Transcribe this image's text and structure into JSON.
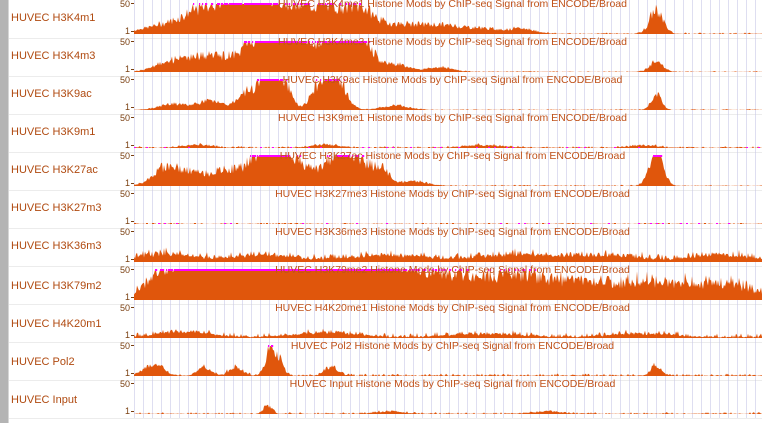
{
  "browser": {
    "left_bar": "track controls"
  },
  "colors": {
    "signal": "#e0560c",
    "clip": "#ff00ff",
    "label": "#b04a10",
    "grid": "#c8c8e8"
  },
  "tracks": [
    {
      "label": "HUVEC H3K4m1",
      "title": "HUVEC H3K4me1 Histone Mods by ChIP-seq Signal from ENCODE/Broad",
      "max": "50",
      "min": "1",
      "peaks": [
        [
          0.05,
          0.04,
          0.25
        ],
        [
          0.1,
          0.03,
          0.3
        ],
        [
          0.15,
          0.04,
          0.9
        ],
        [
          0.19,
          0.03,
          0.6
        ],
        [
          0.22,
          0.03,
          0.4
        ],
        [
          0.26,
          0.03,
          0.7
        ],
        [
          0.3,
          0.02,
          0.5
        ],
        [
          0.33,
          0.02,
          0.5
        ],
        [
          0.36,
          0.02,
          0.6
        ],
        [
          0.42,
          0.04,
          0.3
        ],
        [
          0.49,
          0.03,
          0.2
        ],
        [
          0.55,
          0.03,
          0.15
        ],
        [
          0.61,
          0.02,
          0.15
        ],
        [
          0.82,
          0.01,
          0.8
        ]
      ],
      "noise": 0.05
    },
    {
      "label": "HUVEC H3K4m3",
      "title": "HUVEC H3K4me3 Histone Mods by ChIP-seq Signal from ENCODE/Broad",
      "max": "50",
      "min": "1",
      "peaks": [
        [
          0.05,
          0.02,
          0.3
        ],
        [
          0.09,
          0.02,
          0.4
        ],
        [
          0.13,
          0.02,
          0.45
        ],
        [
          0.17,
          0.02,
          0.3
        ],
        [
          0.21,
          0.025,
          1.3
        ],
        [
          0.24,
          0.02,
          1.1
        ],
        [
          0.31,
          0.03,
          1.3
        ],
        [
          0.35,
          0.02,
          1.2
        ],
        [
          0.41,
          0.02,
          0.25
        ],
        [
          0.48,
          0.02,
          0.15
        ],
        [
          0.82,
          0.01,
          0.35
        ]
      ],
      "noise": 0.03
    },
    {
      "label": "HUVEC H3K9ac",
      "title": "HUVEC H3K9ac Histone Mods by ChIP-seq Signal from ENCODE/Broad",
      "max": "50",
      "min": "1",
      "peaks": [
        [
          0.06,
          0.02,
          0.2
        ],
        [
          0.12,
          0.02,
          0.3
        ],
        [
          0.18,
          0.015,
          0.6
        ],
        [
          0.21,
          0.012,
          1.4
        ],
        [
          0.235,
          0.012,
          0.9
        ],
        [
          0.285,
          0.01,
          0.6
        ],
        [
          0.315,
          0.015,
          1.3
        ],
        [
          0.41,
          0.02,
          0.15
        ],
        [
          0.82,
          0.008,
          0.5
        ]
      ],
      "noise": 0.03
    },
    {
      "label": "HUVEC H3K9m1",
      "title": "HUVEC H3K9me1 Histone Mods by ChIP-seq Signal from ENCODE/Broad",
      "max": "50",
      "min": "1",
      "peaks": [
        [
          0.1,
          0.02,
          0.1
        ],
        [
          0.3,
          0.02,
          0.1
        ],
        [
          0.55,
          0.03,
          0.08
        ],
        [
          0.8,
          0.02,
          0.08
        ]
      ],
      "noise": 0.06
    },
    {
      "label": "HUVEC H3K27ac",
      "title": "HUVEC H3K27ac Histone Mods by ChIP-seq Signal from ENCODE/Broad",
      "max": "50",
      "min": "1",
      "peaks": [
        [
          0.05,
          0.02,
          0.6
        ],
        [
          0.09,
          0.02,
          0.35
        ],
        [
          0.13,
          0.02,
          0.3
        ],
        [
          0.16,
          0.02,
          0.4
        ],
        [
          0.2,
          0.018,
          1.0
        ],
        [
          0.225,
          0.015,
          1.3
        ],
        [
          0.255,
          0.015,
          0.7
        ],
        [
          0.3,
          0.02,
          0.6
        ],
        [
          0.33,
          0.015,
          1.1
        ],
        [
          0.36,
          0.015,
          0.7
        ],
        [
          0.39,
          0.012,
          0.5
        ],
        [
          0.44,
          0.02,
          0.15
        ],
        [
          0.82,
          0.01,
          1.3
        ]
      ],
      "noise": 0.04
    },
    {
      "label": "HUVEC H3K27m3",
      "title": "HUVEC H3K27me3 Histone Mods by ChIP-seq Signal from ENCODE/Broad",
      "max": "50",
      "min": "1",
      "peaks": [],
      "noise": 0.03
    },
    {
      "label": "HUVEC H3K36m3",
      "title": "HUVEC H3K36me3 Histone Mods by ChIP-seq Signal from ENCODE/Broad",
      "max": "50",
      "min": "1",
      "peaks": [
        [
          0.05,
          0.04,
          0.25
        ],
        [
          0.2,
          0.05,
          0.2
        ],
        [
          0.4,
          0.06,
          0.2
        ],
        [
          0.6,
          0.06,
          0.22
        ],
        [
          0.75,
          0.05,
          0.2
        ],
        [
          0.92,
          0.04,
          0.22
        ]
      ],
      "noise": 0.2
    },
    {
      "label": "HUVEC H3K79m2",
      "title": "HUVEC H3K79me2 Histone Mods by ChIP-seq Signal from ENCODE/Broad",
      "max": "50",
      "min": "1",
      "peaks": [
        [
          0.05,
          0.03,
          0.8
        ],
        [
          0.1,
          0.03,
          1.2
        ],
        [
          0.15,
          0.03,
          1.3
        ],
        [
          0.2,
          0.04,
          1.2
        ],
        [
          0.25,
          0.03,
          1.3
        ],
        [
          0.3,
          0.05,
          1.2
        ],
        [
          0.36,
          0.04,
          0.9
        ],
        [
          0.42,
          0.04,
          0.6
        ],
        [
          0.48,
          0.04,
          0.55
        ],
        [
          0.55,
          0.04,
          0.5
        ],
        [
          0.62,
          0.04,
          0.55
        ],
        [
          0.7,
          0.04,
          0.45
        ],
        [
          0.8,
          0.05,
          0.5
        ],
        [
          0.92,
          0.05,
          0.45
        ]
      ],
      "noise": 0.35
    },
    {
      "label": "HUVEC H4K20m1",
      "title": "HUVEC H4K20me1 Histone Mods by ChIP-seq Signal from ENCODE/Broad",
      "max": "50",
      "min": "1",
      "peaks": [
        [
          0.08,
          0.04,
          0.2
        ],
        [
          0.3,
          0.05,
          0.15
        ],
        [
          0.55,
          0.06,
          0.12
        ],
        [
          0.8,
          0.05,
          0.12
        ]
      ],
      "noise": 0.15
    },
    {
      "label": "HUVEC Pol2",
      "title": "HUVEC Pol2 Histone Mods by ChIP-seq Signal from ENCODE/Broad",
      "max": "50",
      "min": "1",
      "peaks": [
        [
          0.03,
          0.015,
          0.35
        ],
        [
          0.11,
          0.01,
          0.25
        ],
        [
          0.16,
          0.01,
          0.3
        ],
        [
          0.215,
          0.008,
          0.9
        ],
        [
          0.23,
          0.006,
          0.4
        ],
        [
          0.31,
          0.01,
          0.3
        ],
        [
          0.82,
          0.008,
          0.35
        ]
      ],
      "noise": 0.08
    },
    {
      "label": "HUVEC Input",
      "title": "HUVEC Input Histone Mods by ChIP-seq Signal from ENCODE/Broad",
      "max": "50",
      "min": "1",
      "peaks": [
        [
          0.21,
          0.006,
          0.3
        ],
        [
          0.4,
          0.02,
          0.08
        ],
        [
          0.65,
          0.02,
          0.08
        ]
      ],
      "noise": 0.06
    }
  ]
}
